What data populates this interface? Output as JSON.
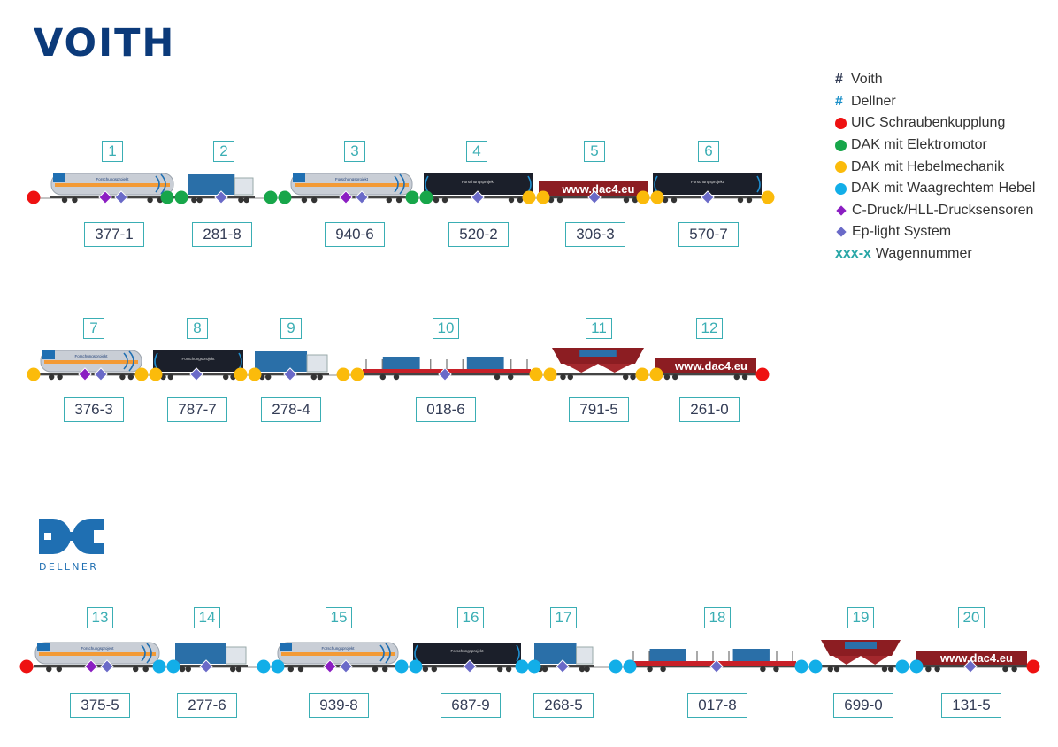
{
  "brands": {
    "voith": "VOITH",
    "dellner": "DELLNER"
  },
  "legend": [
    {
      "type": "hash",
      "symbol": "#",
      "color": "#333c55",
      "label": "Voith"
    },
    {
      "type": "hash",
      "symbol": "#",
      "color": "#1a8fc8",
      "label": "Dellner"
    },
    {
      "type": "dot",
      "color": "#ee1111",
      "label": "UIC Schraubenkupplung"
    },
    {
      "type": "dot",
      "color": "#17a64a",
      "label": "DAK mit Elektromotor"
    },
    {
      "type": "dot",
      "color": "#fbbb0b",
      "label": "DAK mit Hebelmechanik"
    },
    {
      "type": "dot",
      "color": "#12aee8",
      "label": "DAK mit Waagrechtem Hebel"
    },
    {
      "type": "diamond",
      "color": "#8b1ec2",
      "label": "C-Druck/HLL-Drucksensoren"
    },
    {
      "type": "diamond",
      "color": "#6a6ac8",
      "label": "Ep-light System"
    },
    {
      "type": "code",
      "symbol": "xxx-x",
      "color": "#2aa7a7",
      "label": "Wagennummer"
    }
  ],
  "colors": {
    "uic": "#ee1111",
    "elektro": "#17a64a",
    "hebel": "#fbbb0b",
    "waag": "#12aee8",
    "cdruck": "#8b1ec2",
    "eplight": "#6a6ac8",
    "box": "#3aaeb4"
  },
  "wagons": [
    {
      "no": "1",
      "id": "377-1",
      "kind": "tank",
      "sensors": [
        "cdruck",
        "eplight"
      ],
      "text": "Forschungsprojekt"
    },
    {
      "no": "2",
      "id": "281-8",
      "kind": "container",
      "sensors": [
        "eplight"
      ]
    },
    {
      "no": "3",
      "id": "940-6",
      "kind": "tank",
      "sensors": [
        "cdruck",
        "eplight"
      ],
      "text": "Forschungsprojekt"
    },
    {
      "no": "4",
      "id": "520-2",
      "kind": "boxblack",
      "sensors": [
        "eplight"
      ],
      "text": "Forschungsprojekt"
    },
    {
      "no": "5",
      "id": "306-3",
      "kind": "boxred",
      "sensors": [
        "eplight"
      ],
      "text": "www.dac4.eu"
    },
    {
      "no": "6",
      "id": "570-7",
      "kind": "boxblack",
      "sensors": [
        "eplight"
      ],
      "text": "Forschungsprojekt"
    },
    {
      "no": "7",
      "id": "376-3",
      "kind": "tank",
      "sensors": [
        "cdruck",
        "eplight"
      ],
      "text": "Forschungsprojekt"
    },
    {
      "no": "8",
      "id": "787-7",
      "kind": "boxblack",
      "sensors": [
        "eplight"
      ],
      "text": "Forschungsprojekt"
    },
    {
      "no": "9",
      "id": "278-4",
      "kind": "container",
      "sensors": [
        "eplight"
      ]
    },
    {
      "no": "10",
      "id": "018-6",
      "kind": "flat",
      "sensors": [
        "eplight"
      ]
    },
    {
      "no": "11",
      "id": "791-5",
      "kind": "hopper",
      "sensors": []
    },
    {
      "no": "12",
      "id": "261-0",
      "kind": "boxred",
      "sensors": [],
      "text": "www.dac4.eu"
    },
    {
      "no": "13",
      "id": "375-5",
      "kind": "tank",
      "sensors": [
        "cdruck",
        "eplight"
      ],
      "text": "Forschungsprojekt"
    },
    {
      "no": "14",
      "id": "277-6",
      "kind": "container",
      "sensors": [
        "eplight"
      ]
    },
    {
      "no": "15",
      "id": "939-8",
      "kind": "tank",
      "sensors": [
        "cdruck",
        "eplight"
      ],
      "text": "Forschungsprojekt"
    },
    {
      "no": "16",
      "id": "687-9",
      "kind": "boxblack",
      "sensors": [
        "eplight"
      ],
      "text": "Forschungsprojekt"
    },
    {
      "no": "17",
      "id": "268-5",
      "kind": "container",
      "sensors": [
        "eplight"
      ]
    },
    {
      "no": "18",
      "id": "017-8",
      "kind": "flat",
      "sensors": [
        "eplight"
      ]
    },
    {
      "no": "19",
      "id": "699-0",
      "kind": "hopper",
      "sensors": []
    },
    {
      "no": "20",
      "id": "131-5",
      "kind": "boxred",
      "sensors": [
        "eplight"
      ],
      "text": "www.dac4.eu"
    }
  ],
  "couplers": {
    "row1": [
      "uic",
      "elektro",
      "elektro",
      "elektro",
      "elektro",
      "elektro",
      "elektro",
      "hebel",
      "hebel",
      "hebel",
      "hebel",
      "hebel"
    ],
    "row2": [
      "hebel",
      "hebel",
      "hebel",
      "hebel",
      "hebel",
      "hebel",
      "hebel",
      "hebel",
      "hebel",
      "hebel",
      "hebel",
      "hebel",
      "uic"
    ],
    "row3": [
      "uic",
      "waag",
      "waag",
      "waag",
      "waag",
      "waag",
      "waag",
      "waag",
      "waag",
      "waag",
      "waag",
      "waag",
      "waag",
      "waag",
      "waag",
      "waag",
      "waag",
      "uic"
    ]
  }
}
